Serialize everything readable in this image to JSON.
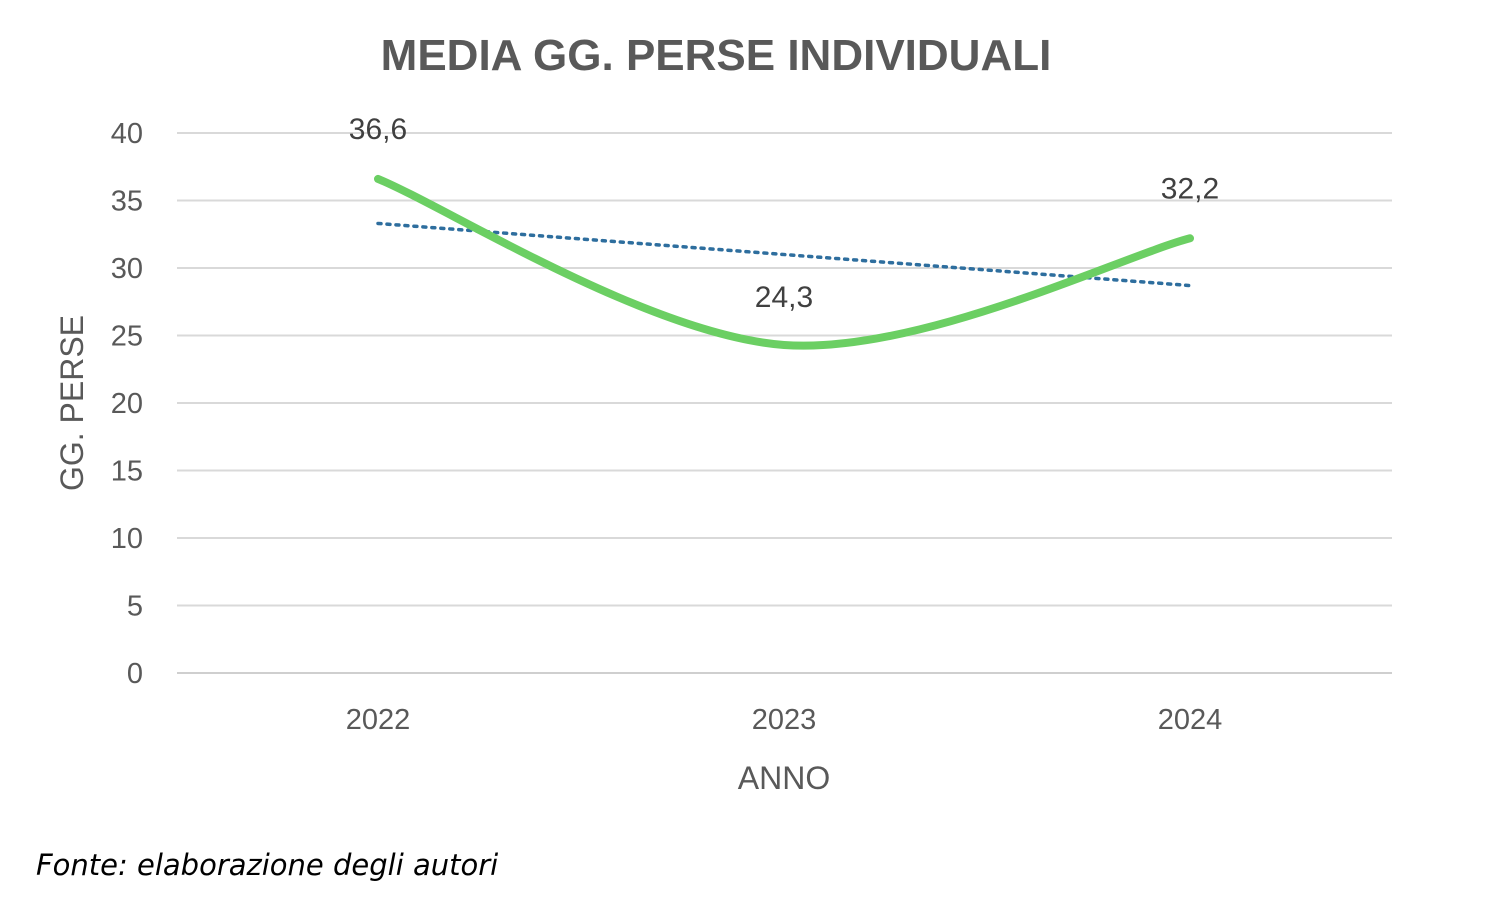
{
  "chart_data": {
    "type": "line",
    "title": "MEDIA GG. PERSE INDIVIDUALI",
    "xlabel": "ANNO",
    "ylabel": "GG. PERSE",
    "categories": [
      "2022",
      "2023",
      "2024"
    ],
    "series": [
      {
        "values": [
          36.6,
          24.3,
          32.2
        ],
        "data_labels": [
          "36,6",
          "24,3",
          "32,2"
        ],
        "color": "#6BCF63",
        "smooth": true
      }
    ],
    "trendline": {
      "type": "linear",
      "values": [
        33.3,
        31.0,
        28.7
      ],
      "color": "#2E6E9E",
      "style": "dotted"
    },
    "ylim": [
      0,
      40
    ],
    "yticks": [
      "0",
      "5",
      "10",
      "15",
      "20",
      "25",
      "30",
      "35",
      "40"
    ],
    "grid": true,
    "legend": "none"
  },
  "footer": {
    "source": "Fonte: elaborazione degli autori"
  }
}
